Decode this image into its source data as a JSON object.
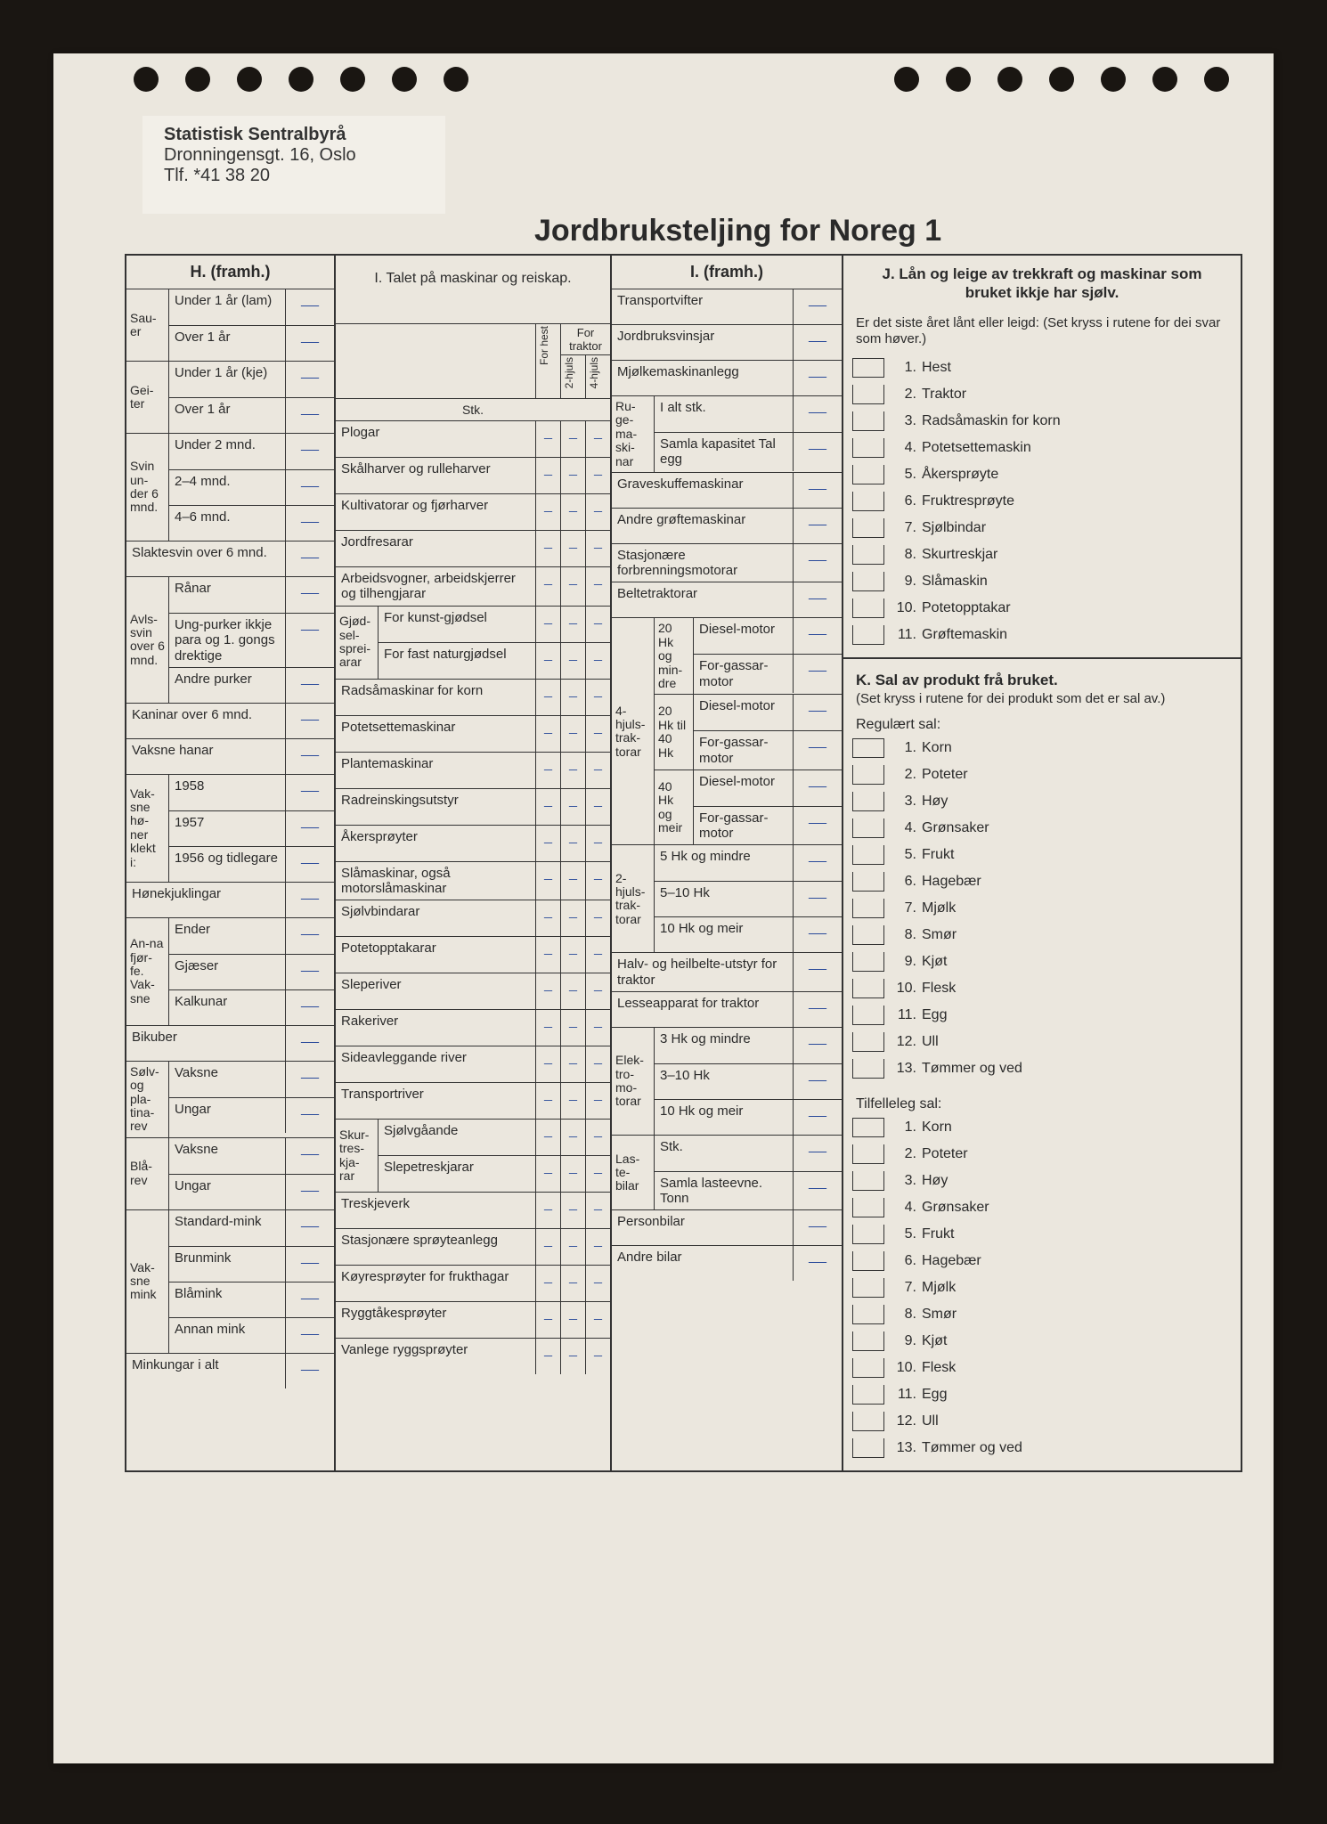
{
  "org": {
    "name": "Statistisk Sentralbyrå",
    "addr": "Dronningensgt. 16, Oslo",
    "tel": "Tlf. *41 38 20"
  },
  "title": "Jordbruksteljing for Noreg 1",
  "H": {
    "head": "H. (framh.)",
    "groups": [
      {
        "side": "Sau-er",
        "rows": [
          [
            "Under 1 år (lam)",
            "—"
          ],
          [
            "Over 1 år",
            "—"
          ]
        ]
      },
      {
        "side": "Gei-ter",
        "rows": [
          [
            "Under 1 år (kje)",
            "—"
          ],
          [
            "Over 1 år",
            "—"
          ]
        ]
      },
      {
        "side": "Svin un-der 6 mnd.",
        "rows": [
          [
            "Under 2 mnd.",
            "—"
          ],
          [
            "2–4 mnd.",
            "—"
          ],
          [
            "4–6 mnd.",
            "—"
          ]
        ]
      },
      {
        "side": "",
        "rows": [
          [
            "Slaktesvin over 6 mnd.",
            "—"
          ]
        ]
      },
      {
        "side": "Avls-svin over 6 mnd.",
        "rows": [
          [
            "Rånar",
            "—"
          ],
          [
            "Ung-purker ikkje para og 1. gongs drektige",
            "—"
          ],
          [
            "Andre purker",
            "—"
          ]
        ]
      },
      {
        "side": "",
        "rows": [
          [
            "Kaninar over 6 mnd.",
            "—"
          ]
        ]
      },
      {
        "side": "",
        "rows": [
          [
            "Vaksne hanar",
            "—"
          ]
        ]
      },
      {
        "side": "Vak-sne hø-ner klekt i:",
        "rows": [
          [
            "1958",
            "—"
          ],
          [
            "1957",
            "—"
          ],
          [
            "1956 og tidlegare",
            "—"
          ]
        ]
      },
      {
        "side": "",
        "rows": [
          [
            "Hønekjuklingar",
            "—"
          ]
        ]
      },
      {
        "side": "An-na fjør-fe. Vak-sne",
        "rows": [
          [
            "Ender",
            "—"
          ],
          [
            "Gjæser",
            "—"
          ],
          [
            "Kalkunar",
            "—"
          ]
        ]
      },
      {
        "side": "",
        "rows": [
          [
            "Bikuber",
            "—"
          ]
        ]
      },
      {
        "side": "Sølv- og pla-tina-rev",
        "rows": [
          [
            "Vaksne",
            "—"
          ],
          [
            "Ungar",
            "—"
          ]
        ]
      },
      {
        "side": "Blå-rev",
        "rows": [
          [
            "Vaksne",
            "—"
          ],
          [
            "Ungar",
            "—"
          ]
        ]
      },
      {
        "side": "Vak-sne mink",
        "rows": [
          [
            "Standard-mink",
            "—"
          ],
          [
            "Brunmink",
            "—"
          ],
          [
            "Blåmink",
            "—"
          ],
          [
            "Annan mink",
            "—"
          ]
        ]
      },
      {
        "side": "",
        "rows": [
          [
            "Minkungar i alt",
            "—"
          ]
        ]
      }
    ]
  },
  "I": {
    "head": "I. Talet på maskinar og reiskap.",
    "colheads": {
      "h": "For hest",
      "t2": "2-hjuls",
      "t4": "4-hjuls",
      "trak": "For traktor",
      "stk": "Stk."
    },
    "rows": [
      "Plogar",
      "Skålharver og rulleharver",
      "Kultivatorar og fjørharver",
      "Jordfresarar",
      "Arbeidsvogner, arbeidskjerrer og tilhengjarar",
      "Gjød-sel-sprei-arar|For kunst-gjødsel",
      "|For fast naturgjødsel",
      "Radsåmaskinar for korn",
      "Potetsettemaskinar",
      "Plantemaskinar",
      "Radreinskingsutstyr",
      "Åkersprøyter",
      "Slåmaskinar, også motorslåmaskinar",
      "Sjølvbindarar",
      "Potetopptakarar",
      "Sleperiver",
      "Rakeriver",
      "Sideavleggande river",
      "Transportriver",
      "Skur-tres-kja-rar|Sjølvgåande",
      "|Slepetreskjarar",
      "Treskjeverk",
      "Stasjonære sprøyteanlegg",
      "Køyresprøyter for frukthagar",
      "Ryggtåkesprøyter",
      "Vanlege ryggsprøyter"
    ]
  },
  "I2": {
    "head": "I. (framh.)",
    "top": [
      "Transportvifter",
      "Jordbruksvinsjar",
      "Mjølkemaskinanlegg"
    ],
    "ruge": {
      "side": "Ru-ge-ma-ski-nar",
      "rows": [
        "I alt stk.",
        "Samla kapasitet Tal egg"
      ]
    },
    "mid": [
      "Graveskuffemaskinar",
      "Andre grøftemaskinar",
      "Stasjonære forbrenningsmotorar",
      "Beltetraktorar"
    ],
    "t4": {
      "side": "4-hjuls-trak-torar",
      "blocks": [
        {
          "cap": "20 Hk og min-dre",
          "rows": [
            "Diesel-motor",
            "For-gassar-motor"
          ]
        },
        {
          "cap": "20 Hk til 40 Hk",
          "rows": [
            "Diesel-motor",
            "For-gassar-motor"
          ]
        },
        {
          "cap": "40 Hk og meir",
          "rows": [
            "Diesel-motor",
            "For-gassar-motor"
          ]
        }
      ]
    },
    "t2": {
      "side": "2-hjuls-trak-torar",
      "rows": [
        "5 Hk og mindre",
        "5–10 Hk",
        "10 Hk og meir"
      ]
    },
    "bottom1": [
      "Halv- og heilbelte-utstyr for traktor",
      "Lesseapparat for traktor"
    ],
    "elek": {
      "side": "Elek-tro-mo-torar",
      "rows": [
        "3 Hk og mindre",
        "3–10 Hk",
        "10 Hk og meir"
      ]
    },
    "laste": {
      "side": "Las-te-bilar",
      "rows": [
        "Stk.",
        "Samla lasteevne. Tonn"
      ]
    },
    "bottom2": [
      "Personbilar",
      "Andre bilar"
    ]
  },
  "J": {
    "head": "J. Lån og leige av trekkraft og maskinar som bruket ikkje har sjølv.",
    "sub": "Er det siste året lånt eller leigd: (Set kryss i rutene for dei svar som høver.)",
    "items": [
      "Hest",
      "Traktor",
      "Radsåmaskin for korn",
      "Potetsettemaskin",
      "Åkersprøyte",
      "Fruktresprøyte",
      "Sjølbindar",
      "Skurtreskjar",
      "Slåmaskin",
      "Potetopptakar",
      "Grøftemaskin"
    ]
  },
  "K": {
    "head": "K. Sal av produkt frå bruket.",
    "sub": "(Set kryss i rutene for dei produkt som det er sal av.)",
    "reg": "Regulært sal:",
    "til": "Tilfelleleg sal:",
    "items": [
      "Korn",
      "Poteter",
      "Høy",
      "Grønsaker",
      "Frukt",
      "Hagebær",
      "Mjølk",
      "Smør",
      "Kjøt",
      "Flesk",
      "Egg",
      "Ull",
      "Tømmer og ved"
    ]
  }
}
